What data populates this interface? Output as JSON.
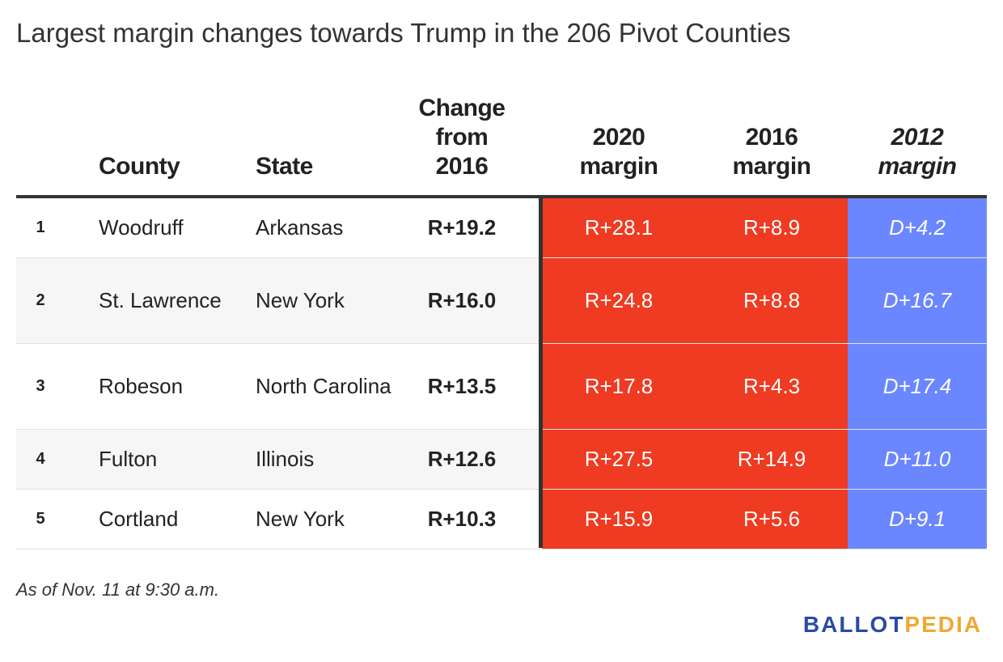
{
  "title": "Largest margin changes towards Trump in the 206 Pivot Counties",
  "colors": {
    "red": "#ee3b22",
    "blue": "#6b87ff",
    "logo_blue": "#2b4aa2",
    "logo_gold": "#f0a830"
  },
  "headers": {
    "county": "County",
    "state": "State",
    "change": [
      "Change",
      "from",
      "2016"
    ],
    "m2020": [
      "2020",
      "margin"
    ],
    "m2016": [
      "2016",
      "margin"
    ],
    "m2012": [
      "2012",
      "margin"
    ]
  },
  "chart_data": {
    "type": "table",
    "title": "Largest margin changes towards Trump in the 206 Pivot Counties",
    "columns": [
      "",
      "County",
      "State",
      "Change from 2016",
      "2020 margin",
      "2016 margin",
      "2012 margin"
    ],
    "rows": [
      {
        "rank": "1",
        "county": "Woodruff",
        "state": "Arkansas",
        "change": "R+19.2",
        "m2020": "R+28.1",
        "m2016": "R+8.9",
        "m2012": "D+4.2"
      },
      {
        "rank": "2",
        "county": "St. Lawrence",
        "state": "New York",
        "change": "R+16.0",
        "m2020": "R+24.8",
        "m2016": "R+8.8",
        "m2012": "D+16.7"
      },
      {
        "rank": "3",
        "county": "Robeson",
        "state": "North Carolina",
        "change": "R+13.5",
        "m2020": "R+17.8",
        "m2016": "R+4.3",
        "m2012": "D+17.4"
      },
      {
        "rank": "4",
        "county": "Fulton",
        "state": "Illinois",
        "change": "R+12.6",
        "m2020": "R+27.5",
        "m2016": "R+14.9",
        "m2012": "D+11.0"
      },
      {
        "rank": "5",
        "county": "Cortland",
        "state": "New York",
        "change": "R+10.3",
        "m2020": "R+15.9",
        "m2016": "R+5.6",
        "m2012": "D+9.1"
      }
    ]
  },
  "footnote": "As of Nov. 11 at 9:30 a.m.",
  "logo": {
    "part1": "BALLOT",
    "part2": "PEDIA"
  }
}
